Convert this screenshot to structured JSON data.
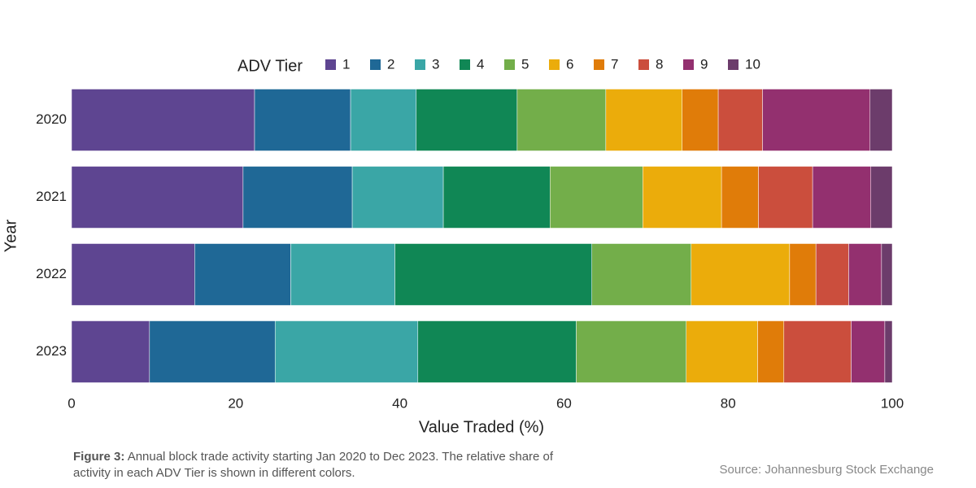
{
  "chart_data": {
    "type": "stacked-bar-horizontal",
    "legend_title": "ADV Tier",
    "x_label": "Value Traded (%)",
    "y_label": "Year",
    "categories": [
      "2020",
      "2021",
      "2022",
      "2023"
    ],
    "series": [
      {
        "name": "1",
        "color": "#5e4591",
        "values": [
          22.3,
          20.9,
          15.0,
          9.5
        ]
      },
      {
        "name": "2",
        "color": "#1f6896",
        "values": [
          11.7,
          13.3,
          11.7,
          15.3
        ]
      },
      {
        "name": "3",
        "color": "#3aa6a6",
        "values": [
          8.0,
          11.1,
          12.7,
          17.4
        ]
      },
      {
        "name": "4",
        "color": "#108755",
        "values": [
          12.3,
          13.0,
          24.0,
          19.3
        ]
      },
      {
        "name": "5",
        "color": "#73ae4a",
        "values": [
          10.8,
          11.3,
          12.1,
          13.4
        ]
      },
      {
        "name": "6",
        "color": "#ebac0b",
        "values": [
          9.3,
          9.6,
          12.0,
          8.7
        ]
      },
      {
        "name": "7",
        "color": "#e07c09",
        "values": [
          4.4,
          4.5,
          3.2,
          3.2
        ]
      },
      {
        "name": "8",
        "color": "#cb4e3d",
        "values": [
          5.4,
          6.6,
          4.0,
          8.2
        ]
      },
      {
        "name": "9",
        "color": "#93306f",
        "values": [
          13.1,
          7.1,
          4.0,
          4.1
        ]
      },
      {
        "name": "10",
        "color": "#6c3c6b",
        "values": [
          2.7,
          2.6,
          1.3,
          0.9
        ]
      }
    ],
    "xlim": [
      0,
      100
    ],
    "xticks": [
      0,
      20,
      40,
      60,
      80,
      100
    ],
    "caption_label": "Figure 3:",
    "caption": "Annual block trade activity starting Jan 2020 to Dec 2023. The relative share of activity in each ADV Tier is shown in different colors.",
    "source": "Source: Johannesburg Stock Exchange"
  }
}
